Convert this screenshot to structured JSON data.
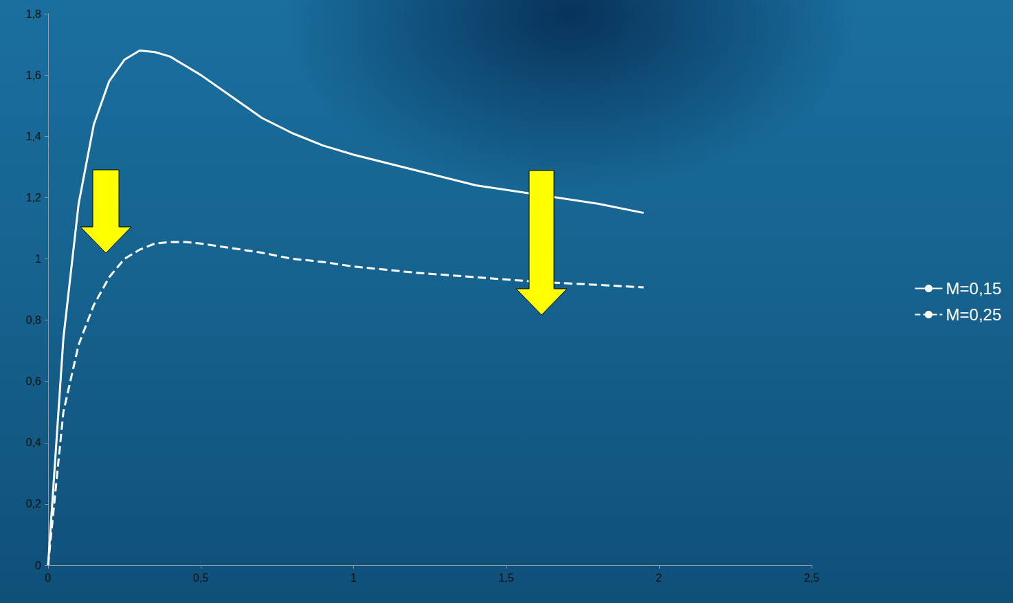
{
  "chart_data": {
    "type": "line",
    "x": [
      0,
      0.05,
      0.1,
      0.15,
      0.2,
      0.25,
      0.3,
      0.35,
      0.4,
      0.45,
      0.5,
      0.6,
      0.7,
      0.8,
      0.9,
      1.0,
      1.2,
      1.4,
      1.6,
      1.8,
      1.95
    ],
    "series": [
      {
        "name": "M=0,15",
        "color": "#ffffff",
        "line_style": "solid",
        "values": [
          0,
          0.74,
          1.18,
          1.44,
          1.58,
          1.65,
          1.68,
          1.675,
          1.66,
          1.63,
          1.6,
          1.53,
          1.46,
          1.41,
          1.37,
          1.34,
          1.29,
          1.24,
          1.21,
          1.18,
          1.15
        ]
      },
      {
        "name": "M=0,25",
        "color": "#ffffff",
        "line_style": "dashed",
        "values": [
          0,
          0.5,
          0.72,
          0.85,
          0.94,
          1.0,
          1.03,
          1.05,
          1.055,
          1.055,
          1.05,
          1.035,
          1.02,
          1.0,
          0.99,
          0.975,
          0.955,
          0.94,
          0.925,
          0.915,
          0.907
        ]
      }
    ],
    "xlim": [
      0,
      2.5
    ],
    "xticks": [
      0,
      {
        "value": 0.5,
        "label": "0,5"
      },
      1,
      {
        "value": 1.5,
        "label": "1,5"
      },
      2,
      {
        "value": 2.5,
        "label": "2,5"
      }
    ],
    "ylim": [
      0,
      1.8
    ],
    "yticks": [
      0,
      {
        "value": 0.2,
        "label": "0,2"
      },
      {
        "value": 0.4,
        "label": "0,4"
      },
      {
        "value": 0.6,
        "label": "0,6"
      },
      {
        "value": 0.8,
        "label": "0,8"
      },
      1,
      {
        "value": 1.2,
        "label": "1,2"
      },
      {
        "value": 1.4,
        "label": "1,4"
      },
      {
        "value": 1.6,
        "label": "1,6"
      },
      {
        "value": 1.8,
        "label": "1,8"
      }
    ],
    "grid": false,
    "legend": "right"
  }
}
